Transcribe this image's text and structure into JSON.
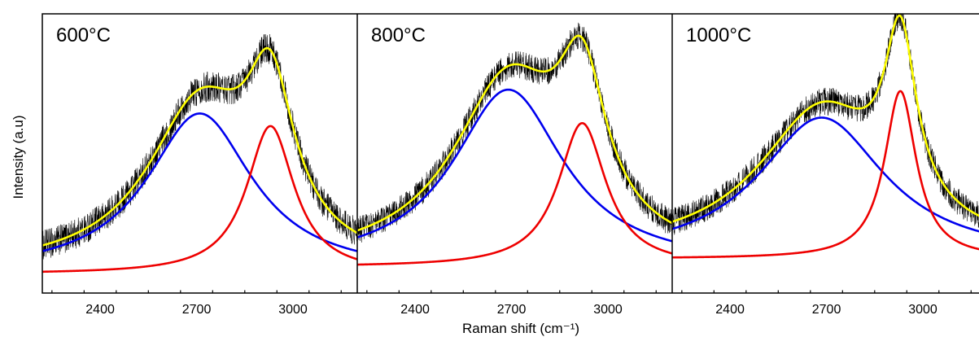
{
  "chart_data": {
    "type": "line",
    "xlabel": "Raman shift (cm⁻¹)",
    "ylabel": "Intensity (a.u)",
    "xlim": [
      2220,
      3200
    ],
    "ylim": [
      0,
      1
    ],
    "x_ticks": [
      2400,
      2700,
      3000
    ],
    "x_tick_labels": [
      "2400",
      "2700",
      "3000"
    ],
    "colors": {
      "measured": "#000000",
      "envelope_fit": "#ffff00",
      "peak_low": "#0000ee",
      "peak_high": "#ee0000"
    },
    "panels": [
      {
        "label": "600°C",
        "baseline": 0.08,
        "noise": 0.055,
        "peaks": [
          {
            "color": "peak_low",
            "center": 2710,
            "hwhm": 200,
            "amplitude": 0.575
          },
          {
            "color": "peak_high",
            "center": 2930,
            "hwhm": 90,
            "amplitude": 0.53
          }
        ]
      },
      {
        "label": "800°C",
        "baseline": 0.11,
        "noise": 0.05,
        "peaks": [
          {
            "color": "peak_low",
            "center": 2690,
            "hwhm": 210,
            "amplitude": 0.635
          },
          {
            "color": "peak_high",
            "center": 2920,
            "hwhm": 90,
            "amplitude": 0.515
          }
        ]
      },
      {
        "label": "1000°C",
        "baseline": 0.145,
        "noise": 0.05,
        "peaks": [
          {
            "color": "peak_low",
            "center": 2685,
            "hwhm": 240,
            "amplitude": 0.505
          },
          {
            "color": "peak_high",
            "center": 2930,
            "hwhm": 60,
            "amplitude": 0.6
          }
        ]
      }
    ]
  }
}
